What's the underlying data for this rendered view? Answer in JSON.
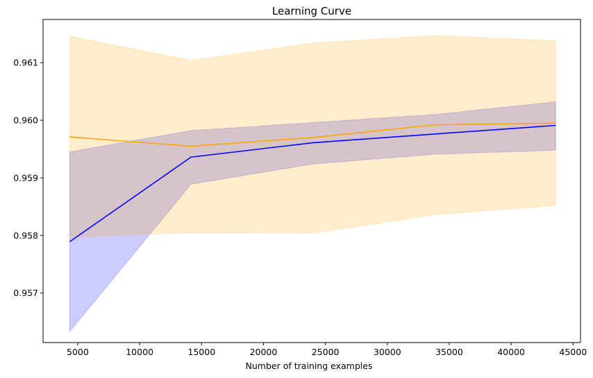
{
  "chart_data": {
    "type": "line",
    "title": "Learning Curve",
    "xlabel": "Number of training examples",
    "ylabel": "",
    "xlim": [
      2200,
      45600
    ],
    "ylim": [
      0.95614,
      0.96175
    ],
    "xticks": [
      5000,
      10000,
      15000,
      20000,
      25000,
      30000,
      35000,
      40000,
      45000
    ],
    "xtick_labels": [
      "5000",
      "10000",
      "15000",
      "20000",
      "25000",
      "30000",
      "35000",
      "40000",
      "45000"
    ],
    "yticks": [
      0.957,
      0.958,
      0.959,
      0.96,
      0.961
    ],
    "ytick_labels": [
      "0.957",
      "0.958",
      "0.959",
      "0.960",
      "0.961"
    ],
    "x": [
      4350,
      14150,
      24000,
      33800,
      43600
    ],
    "series": [
      {
        "color": "#0000ff",
        "band_color": "#0000ff",
        "values": [
          0.95789,
          0.95936,
          0.95961,
          0.95976,
          0.95991
        ],
        "lower": [
          0.95633,
          0.95889,
          0.95924,
          0.95941,
          0.95948
        ],
        "upper": [
          0.95945,
          0.95982,
          0.95996,
          0.9601,
          0.96032
        ]
      },
      {
        "color": "#ffa500",
        "band_color": "#ffa500",
        "values": [
          0.95971,
          0.95955,
          0.9597,
          0.95992,
          0.95995
        ],
        "lower": [
          0.95797,
          0.95805,
          0.95804,
          0.95836,
          0.95852
        ],
        "upper": [
          0.96146,
          0.96104,
          0.96134,
          0.96147,
          0.96138
        ]
      }
    ],
    "grid": false,
    "legend": false
  }
}
